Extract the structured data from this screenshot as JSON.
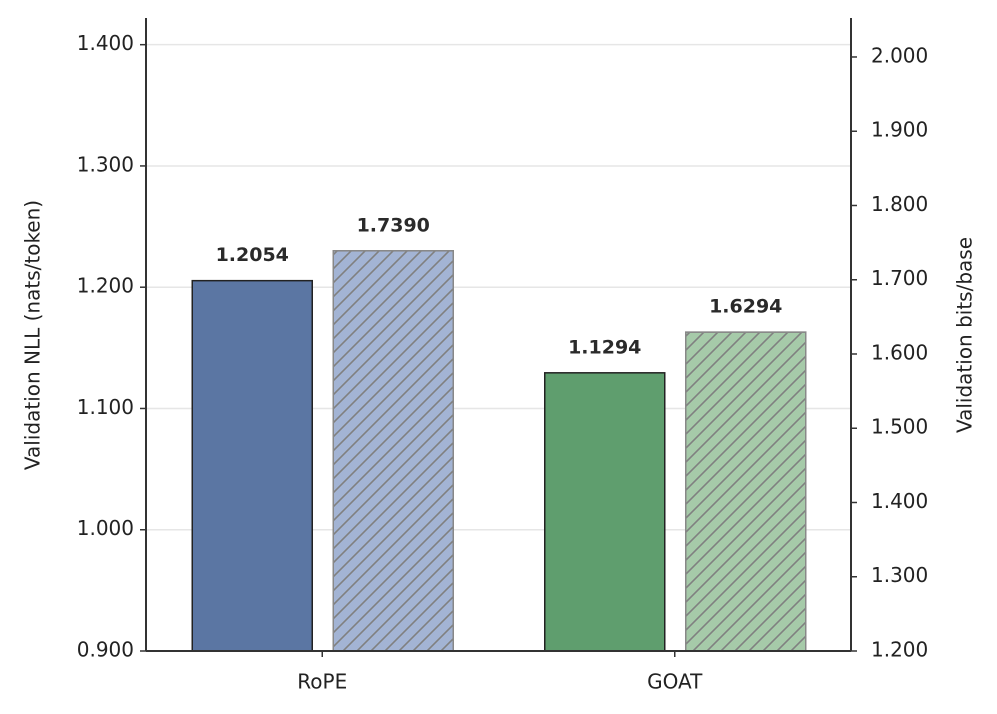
{
  "chart_data": {
    "type": "bar",
    "y_label": "Validation NLL (nats/token)",
    "y2_label": "Validation bits/base",
    "categories": [
      "RoPE",
      "GOAT"
    ],
    "series": [
      {
        "values": [
          1.2054,
          1.1294
        ],
        "colors": [
          "#5b76a3",
          "#5f9e6e"
        ],
        "axis": "y"
      },
      {
        "values": [
          1.739,
          1.6294
        ],
        "value_labels": [
          "1.7390",
          "1.6294"
        ],
        "colors": [
          "#a3b4d4",
          "#a6caa9"
        ],
        "axis": "y2",
        "hatch": true
      }
    ],
    "ylim": [
      0.9,
      1.422
    ],
    "yticks": [
      {
        "value": 0.9,
        "label": "0.900"
      },
      {
        "value": 1.0,
        "label": "1.000"
      },
      {
        "value": 1.1,
        "label": "1.100"
      },
      {
        "value": 1.2,
        "label": "1.200"
      },
      {
        "value": 1.3,
        "label": "1.300"
      },
      {
        "value": 1.4,
        "label": "1.400"
      }
    ],
    "y2lim": [
      1.2,
      2.0525
    ],
    "y2ticks": [
      {
        "value": 1.2,
        "label": "1.200"
      },
      {
        "value": 1.3,
        "label": "1.300"
      },
      {
        "value": 1.4,
        "label": "1.400"
      },
      {
        "value": 1.5,
        "label": "1.500"
      },
      {
        "value": 1.6,
        "label": "1.600"
      },
      {
        "value": 1.7,
        "label": "1.700"
      },
      {
        "value": 1.8,
        "label": "1.800"
      },
      {
        "value": 1.9,
        "label": "1.900"
      },
      {
        "value": 2.0,
        "label": "2.000"
      }
    ],
    "grid": true
  }
}
